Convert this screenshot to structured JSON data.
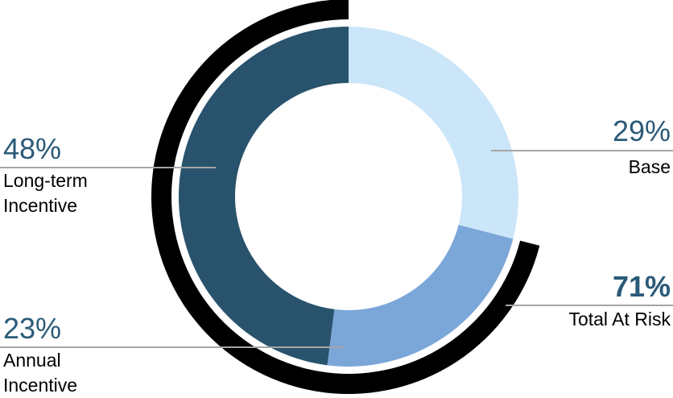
{
  "chart_data": {
    "type": "pie",
    "subtype": "donut",
    "title": "",
    "start_angle_deg": 0,
    "direction": "clockwise",
    "segments": [
      {
        "label": "Base",
        "value_pct": 29,
        "color": "#CBE6F8"
      },
      {
        "label": "Annual Incentive",
        "value_pct": 23,
        "color": "#7BA6D8"
      },
      {
        "label": "Long-term Incentive",
        "value_pct": 48,
        "color": "#29536D"
      }
    ],
    "outer_arc": {
      "label": "Total At Risk",
      "value_pct": 71,
      "color": "#000000",
      "covers": [
        "Annual Incentive",
        "Long-term Incentive"
      ]
    },
    "legend_position": "callout-labels",
    "grid": false
  },
  "callouts": {
    "long_term": {
      "pct": "48%",
      "line1": "Long-term",
      "line2": "Incentive"
    },
    "annual": {
      "pct": "23%",
      "line1": "Annual",
      "line2": "Incentive"
    },
    "base": {
      "pct": "29%",
      "name": "Base"
    },
    "total_at_risk": {
      "pct": "71%",
      "name": "Total At Risk"
    }
  },
  "colors": {
    "pct_text": "#2B5A78",
    "name_text": "#000000",
    "leader_line": "#A6A6A6",
    "background": "#FFFFFF"
  }
}
